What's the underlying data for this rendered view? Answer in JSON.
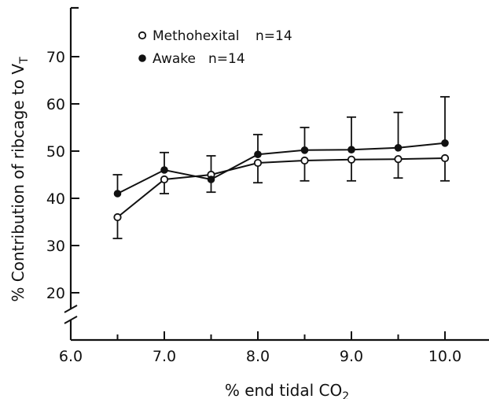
{
  "chart_data": {
    "type": "line",
    "title": "",
    "xlabel": "% end tidal CO",
    "xlabel_subscript": "2",
    "ylabel": "% Contribution of ribcage to V",
    "ylabel_subscript": "T",
    "x_ticks": [
      "6.0",
      "7.0",
      "8.0",
      "9.0",
      "10.0"
    ],
    "y_ticks": [
      "20",
      "30",
      "40",
      "50",
      "60",
      "70"
    ],
    "xlim": [
      6.0,
      10.5
    ],
    "ylim": [
      20,
      70
    ],
    "y_axis_break": true,
    "grid": false,
    "legend_position": "top-left",
    "x": [
      6.5,
      7.0,
      7.5,
      8.0,
      8.5,
      9.0,
      9.5,
      10.0
    ],
    "series": [
      {
        "name": "Methohexital",
        "n_label": "n=14",
        "marker": "open-circle",
        "values": [
          36,
          44,
          45,
          47.5,
          48,
          48.2,
          48.3,
          48.5
        ],
        "error_low": [
          31.5,
          41,
          41.3,
          43.3,
          43.7,
          43.7,
          44.3,
          43.7
        ]
      },
      {
        "name": "Awake",
        "n_label": "n=14",
        "marker": "filled-circle",
        "values": [
          41,
          46,
          44,
          49.3,
          50.2,
          50.3,
          50.7,
          51.7
        ],
        "error_high": [
          45,
          49.7,
          49,
          53.5,
          55,
          57.2,
          58.2,
          61.5
        ]
      }
    ]
  }
}
